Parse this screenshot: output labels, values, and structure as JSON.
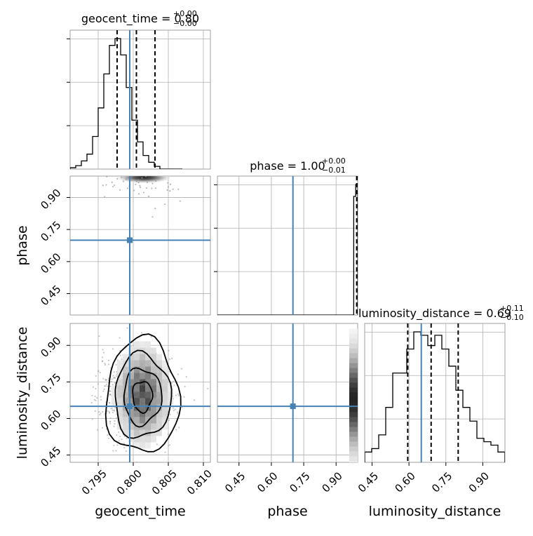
{
  "colors": {
    "truth": "#4682b4",
    "hist": "#000000",
    "grid": "#b0b0b0",
    "quantile": "#000000"
  },
  "chart_data": {
    "type": "corner",
    "parameters": [
      "geocent_time",
      "phase",
      "luminosity_distance"
    ],
    "truths": {
      "geocent_time": 0.7995,
      "phase": 0.7,
      "luminosity_distance": 0.65
    },
    "ranges": {
      "geocent_time": [
        0.791,
        0.811
      ],
      "phase": [
        0.35,
        1.0
      ],
      "luminosity_distance": [
        0.42,
        0.99
      ]
    },
    "ticks": {
      "geocent_time": {
        "values": [
          0.795,
          0.8,
          0.805,
          0.81
        ],
        "labels": [
          "0.795",
          "0.800",
          "0.805",
          "0.810"
        ]
      },
      "phase": {
        "values": [
          0.45,
          0.6,
          0.75,
          0.9
        ],
        "labels": [
          "0.45",
          "0.60",
          "0.75",
          "0.90"
        ]
      },
      "luminosity_distance": {
        "values": [
          0.45,
          0.6,
          0.75,
          0.9
        ],
        "labels": [
          "0.45",
          "0.60",
          "0.75",
          "0.90"
        ]
      }
    },
    "diagonal": [
      {
        "param": "geocent_time",
        "title": {
          "prefix": "geocent_time = 0.80",
          "plus": "+0.00",
          "minus": "−0.00"
        },
        "quantiles": [
          0.7977,
          0.80045,
          0.8031
        ],
        "hist_edges_start": 0.791,
        "hist_bin_width": 0.0008,
        "counts": [
          2,
          5,
          12,
          22,
          48,
          90,
          140,
          182,
          192,
          168,
          120,
          72,
          40,
          20,
          10,
          4,
          0,
          0,
          0,
          0
        ]
      },
      {
        "param": "phase",
        "title": {
          "prefix": "phase = 1.00",
          "plus": "+0.00",
          "minus": "−0.01"
        },
        "quantiles": [
          0.9955,
          0.999,
          1.0
        ],
        "hist_edges_start": 0.35,
        "hist_bin_width": 0.00929,
        "counts": [
          0,
          0,
          0,
          0,
          0,
          0,
          0,
          0,
          0,
          0,
          0,
          0,
          0,
          0,
          0,
          0,
          0,
          0,
          0,
          0,
          0,
          0,
          0,
          0,
          0,
          0,
          0,
          0,
          0,
          0,
          0,
          0,
          0,
          0,
          0,
          0,
          0,
          0,
          0,
          0,
          0,
          0,
          0,
          0,
          0,
          0,
          0,
          0,
          0,
          0,
          0,
          0,
          0,
          0,
          0,
          0,
          0,
          0,
          0,
          0,
          0,
          0,
          0,
          0,
          0,
          0,
          0,
          0,
          20,
          22
        ]
      },
      {
        "param": "luminosity_distance",
        "title": {
          "prefix": "luminosity_distance = 0.69",
          "plus": "+0.11",
          "minus": "−0.10"
        },
        "quantiles": [
          0.595,
          0.69,
          0.8
        ],
        "hist_edges_start": 0.42,
        "hist_bin_width": 0.0285,
        "counts": [
          3,
          4,
          8,
          16,
          26,
          26,
          33,
          38,
          37,
          34,
          37,
          33,
          28,
          21,
          16,
          12,
          7,
          6,
          5,
          3
        ]
      }
    ],
    "pairs": [
      {
        "x": "geocent_time",
        "y": "phase"
      },
      {
        "x": "geocent_time",
        "y": "luminosity_distance"
      },
      {
        "x": "phase",
        "y": "luminosity_distance"
      }
    ],
    "axis_labels": {
      "geocent_time": "geocent_time",
      "phase": "phase",
      "luminosity_distance": "luminosity_distance"
    }
  }
}
